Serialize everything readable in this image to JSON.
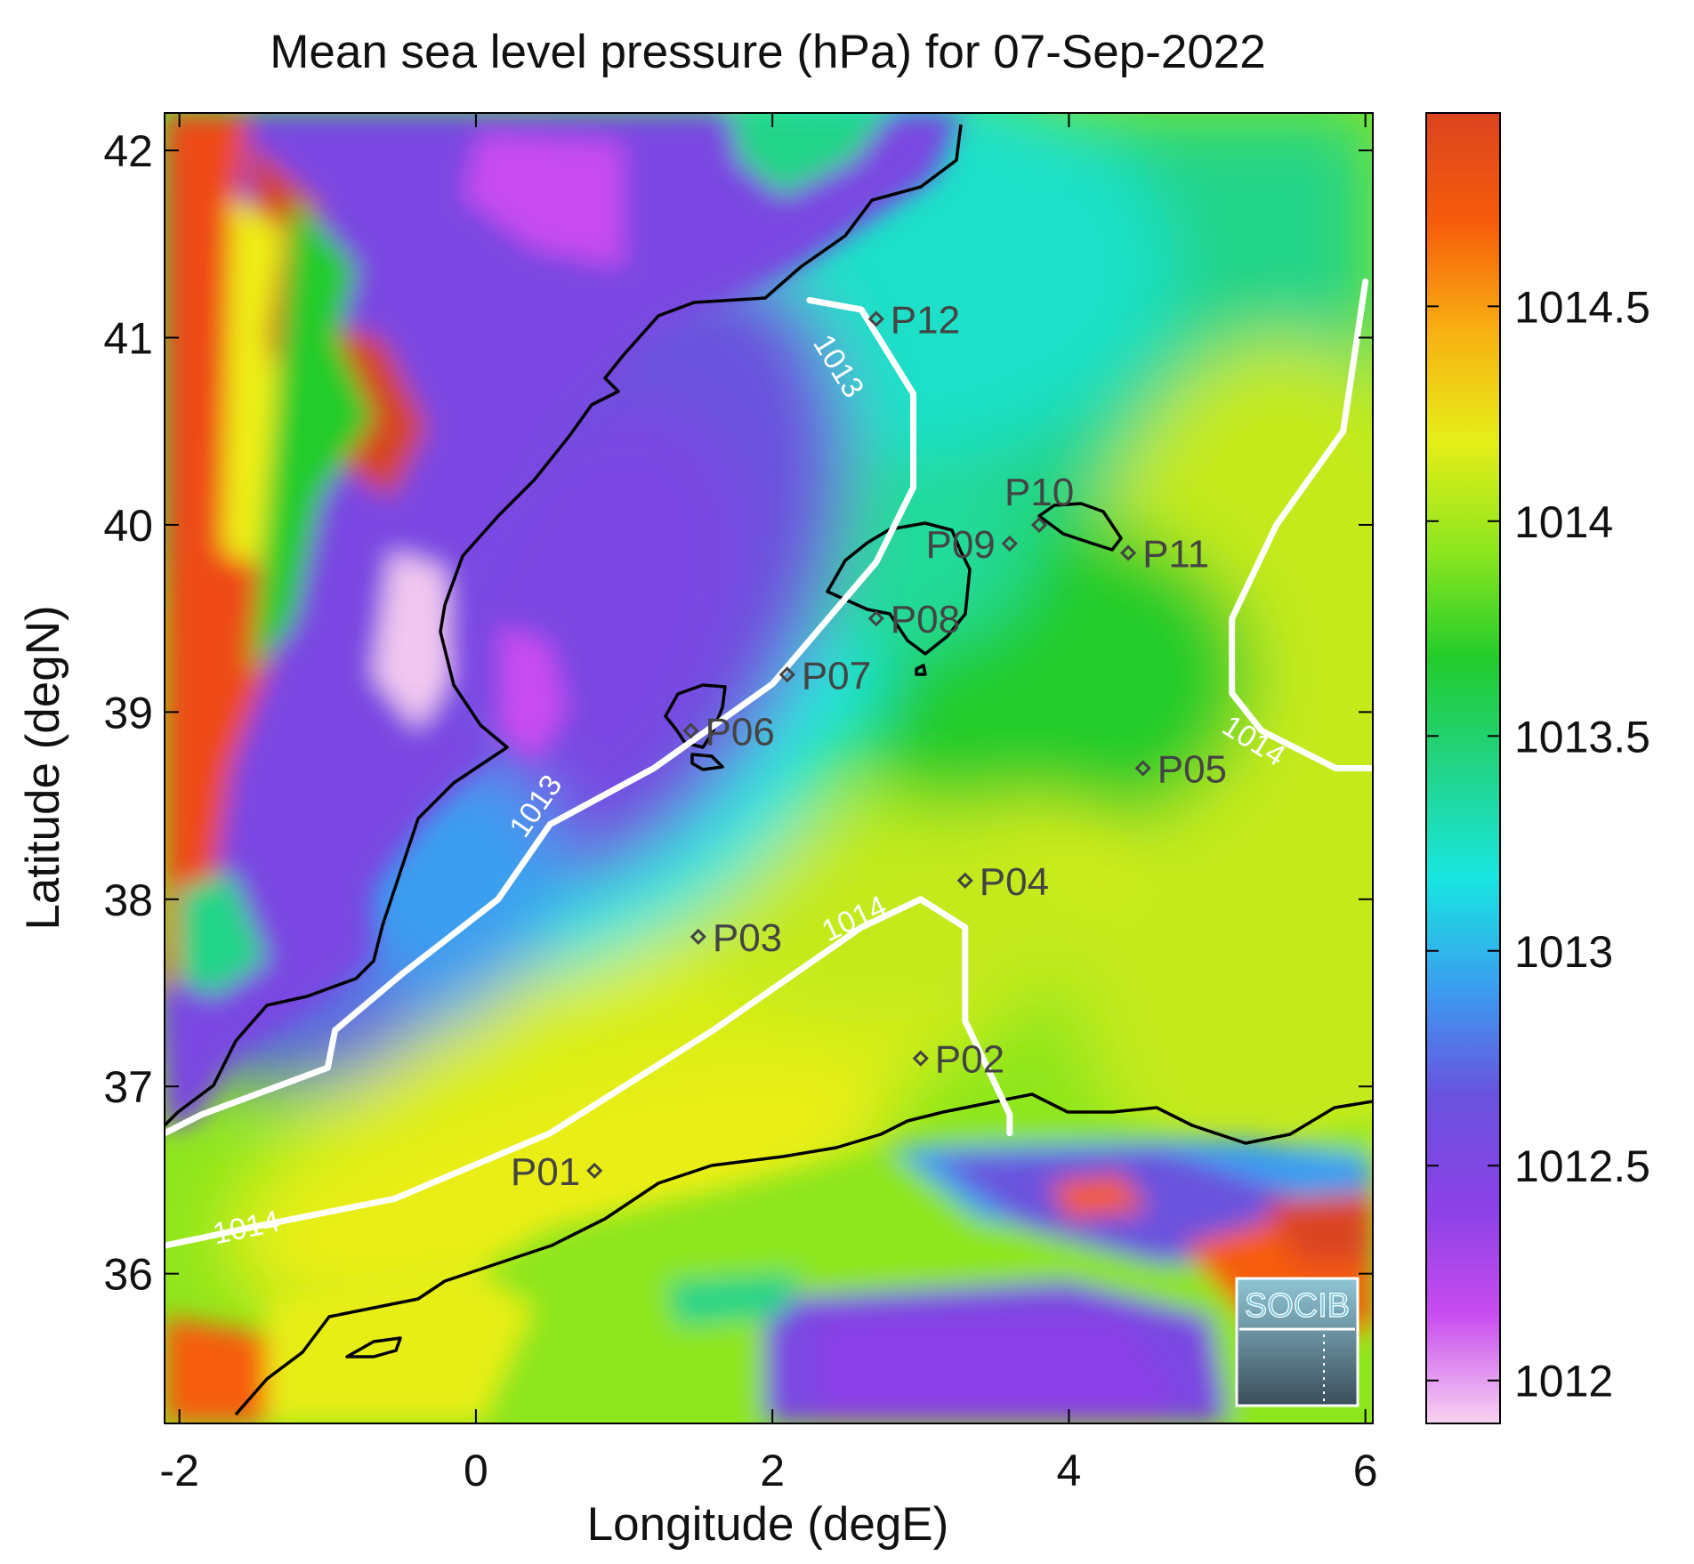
{
  "chart_data": {
    "type": "heatmap",
    "title": "Mean sea level pressure (hPa) for 07-Sep-2022",
    "xlabel": "Longitude (degE)",
    "ylabel": "Latitude (degN)",
    "xlim": [
      -2.1,
      6.05
    ],
    "ylim": [
      35.2,
      42.2
    ],
    "x_ticks": [
      -2,
      0,
      2,
      4,
      6
    ],
    "y_ticks": [
      36,
      37,
      38,
      39,
      40,
      41,
      42
    ],
    "colorbar": {
      "range": [
        1011.9,
        1014.95
      ],
      "ticks": [
        1012,
        1012.5,
        1013,
        1013.5,
        1014,
        1014.5
      ],
      "tick_labels": [
        "1012",
        "1012.5",
        "1013",
        "1013.5",
        "1014",
        "1014.5"
      ],
      "colormap": [
        "#f7d3ef",
        "#c84cf0",
        "#8a41e6",
        "#6a52de",
        "#3a9ef0",
        "#18e6e0",
        "#22d488",
        "#22cc2c",
        "#8ee61e",
        "#e6ee18",
        "#f8b012",
        "#f65c0a",
        "#dc4420"
      ]
    },
    "contour_lines": [
      {
        "label": "1013",
        "label_positions": [
          [
            2.45,
            40.85
          ],
          [
            0.4,
            38.5
          ]
        ],
        "points": [
          [
            2.25,
            41.2
          ],
          [
            2.6,
            41.15
          ],
          [
            2.95,
            40.7
          ],
          [
            2.95,
            40.2
          ],
          [
            2.7,
            39.8
          ],
          [
            2.0,
            39.15
          ],
          [
            1.2,
            38.7
          ],
          [
            0.5,
            38.4
          ],
          [
            0.15,
            38.0
          ],
          [
            -0.5,
            37.6
          ],
          [
            -0.95,
            37.3
          ],
          [
            -1.0,
            37.1
          ],
          [
            -1.85,
            36.85
          ],
          [
            -2.1,
            36.75
          ]
        ]
      },
      {
        "label": "1014",
        "label_positions": [
          [
            2.55,
            37.9
          ],
          [
            -1.55,
            36.25
          ],
          [
            5.25,
            38.85
          ]
        ],
        "points": [
          [
            -2.1,
            36.15
          ],
          [
            -1.5,
            36.25
          ],
          [
            -0.55,
            36.4
          ],
          [
            0.5,
            36.75
          ],
          [
            1.6,
            37.3
          ],
          [
            2.6,
            37.85
          ],
          [
            3.0,
            38.0
          ],
          [
            3.3,
            37.85
          ],
          [
            3.3,
            37.35
          ],
          [
            3.6,
            36.85
          ],
          [
            3.6,
            36.75
          ]
        ]
      },
      {
        "label": "1014",
        "label_positions": [],
        "points": [
          [
            6.0,
            41.3
          ],
          [
            5.85,
            40.5
          ],
          [
            5.4,
            40.0
          ],
          [
            5.1,
            39.5
          ],
          [
            5.1,
            39.1
          ],
          [
            5.3,
            38.9
          ],
          [
            5.8,
            38.7
          ],
          [
            6.05,
            38.7
          ]
        ]
      }
    ],
    "stations": [
      {
        "id": "P01",
        "lon": 0.8,
        "lat": 36.55,
        "label_side": "left"
      },
      {
        "id": "P02",
        "lon": 3.0,
        "lat": 37.15,
        "label_side": "right"
      },
      {
        "id": "P03",
        "lon": 1.5,
        "lat": 37.8,
        "label_side": "right"
      },
      {
        "id": "P04",
        "lon": 3.3,
        "lat": 38.1,
        "label_side": "right"
      },
      {
        "id": "P05",
        "lon": 4.5,
        "lat": 38.7,
        "label_side": "right"
      },
      {
        "id": "P06",
        "lon": 1.45,
        "lat": 38.9,
        "label_side": "right"
      },
      {
        "id": "P07",
        "lon": 2.1,
        "lat": 39.2,
        "label_side": "right"
      },
      {
        "id": "P08",
        "lon": 2.7,
        "lat": 39.5,
        "label_side": "right"
      },
      {
        "id": "P09",
        "lon": 3.6,
        "lat": 39.9,
        "label_side": "left"
      },
      {
        "id": "P10",
        "lon": 3.8,
        "lat": 40.0,
        "label_side": "above"
      },
      {
        "id": "P11",
        "lon": 4.4,
        "lat": 39.85,
        "label_side": "right"
      },
      {
        "id": "P12",
        "lon": 2.7,
        "lat": 41.1,
        "label_side": "right"
      }
    ],
    "grid": false,
    "legend": "colorbar-right"
  },
  "logo": {
    "text": "SOCIB",
    "icon": "socib-logo"
  }
}
